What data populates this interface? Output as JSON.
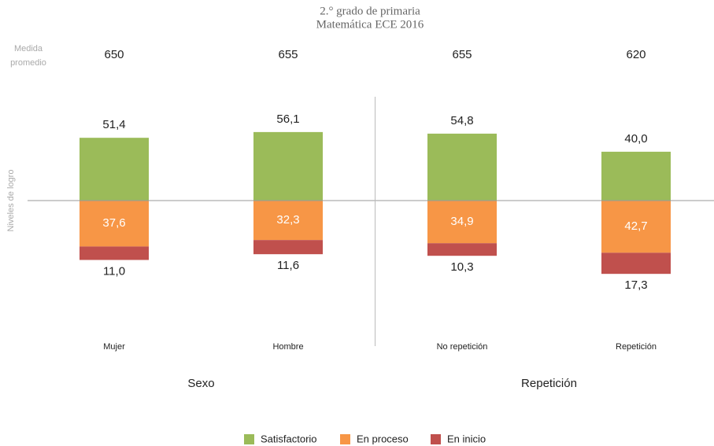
{
  "chart_data": {
    "type": "diverging_bar",
    "title": [
      "2.° grado de primaria",
      "Matemática ECE 2016"
    ],
    "y_label": "Niveles de logro",
    "mean_label": "Medida promedio",
    "means": [
      650,
      655,
      655,
      620
    ],
    "categories": [
      "Mujer",
      "Hombre",
      "No repetición",
      "Repetición"
    ],
    "groups": [
      "Sexo",
      "Repetición"
    ],
    "ylim": [
      -85,
      85
    ],
    "series": [
      {
        "name": "Satisfactorio",
        "color": "#9bbb59",
        "values": [
          51.4,
          56.1,
          54.8,
          40.0
        ],
        "value_labels": [
          "51,4",
          "56,1",
          "54,8",
          "40,0"
        ]
      },
      {
        "name": "En proceso",
        "color": "#f79646",
        "values": [
          37.6,
          32.3,
          34.9,
          42.7
        ],
        "value_labels": [
          "37,6",
          "32,3",
          "34,9",
          "42,7"
        ]
      },
      {
        "name": "En inicio",
        "color": "#c0504d",
        "values": [
          11.0,
          11.6,
          10.3,
          17.3
        ],
        "value_labels": [
          "11,0",
          "11,6",
          "10,3",
          "17,3"
        ]
      }
    ]
  }
}
